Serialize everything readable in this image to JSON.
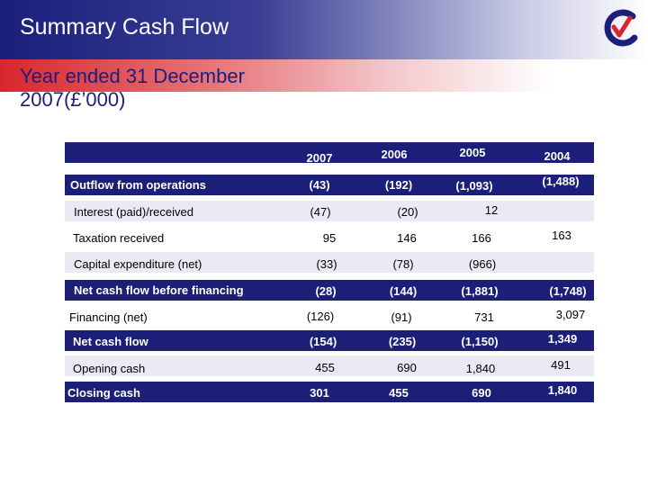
{
  "header": {
    "title": "Summary Cash Flow",
    "subtitle": "Year ended 31 December 2007(£’000)"
  },
  "colors": {
    "navy": "#1b1f78",
    "red": "#d9262e",
    "light_row": "#e9eaf4"
  },
  "logo": {
    "icon": "company-logo-icon"
  },
  "table": {
    "columns": [
      "2007",
      "2006",
      "2005",
      "2004"
    ],
    "rows": [
      {
        "label": "Outflow from operations",
        "values": [
          "(43)",
          "(192)",
          "(1,093)",
          "(1,488)"
        ]
      },
      {
        "label": "Interest (paid)/received",
        "values": [
          "(47)",
          "(20)",
          "12",
          ""
        ]
      },
      {
        "label": "Taxation received",
        "values": [
          "95",
          "146",
          "166",
          "163"
        ]
      },
      {
        "label": "Capital expenditure (net)",
        "values": [
          "(33)",
          "(78)",
          "(966)",
          ""
        ]
      },
      {
        "label": "Net cash flow before financing",
        "values": [
          "(28)",
          "(144)",
          "(1,881)",
          "(1,748)"
        ]
      },
      {
        "label": "Financing (net)",
        "values": [
          "(126)",
          "(91)",
          "731",
          "3,097"
        ]
      },
      {
        "label": "Net cash flow",
        "values": [
          "(154)",
          "(235)",
          "(1,150)",
          "1,349"
        ]
      },
      {
        "label": "Opening cash",
        "values": [
          "455",
          "690",
          "1,840",
          "491"
        ]
      },
      {
        "label": "Closing cash",
        "values": [
          "301",
          "455",
          "690",
          "1,840"
        ]
      }
    ]
  }
}
